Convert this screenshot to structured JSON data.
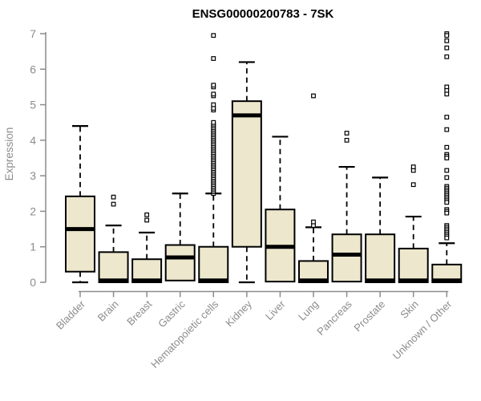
{
  "chart_data": {
    "type": "boxplot",
    "title": "ENSG00000200783 - 7SK",
    "ylabel": "Expression",
    "xlabel": "",
    "ylim": [
      0,
      7
    ],
    "yticks": [
      0,
      1,
      2,
      3,
      4,
      5,
      6,
      7
    ],
    "grid": "off",
    "legend": "none",
    "categories": [
      "Bladder",
      "Brain",
      "Breast",
      "Gastric",
      "Hematopoietic cells",
      "Kidney",
      "Liver",
      "Lung",
      "Pancreas",
      "Prostate",
      "Skin",
      "Unknown / Other"
    ],
    "colors": {
      "box_fill": "#ece7cd",
      "box_stroke": "#000000",
      "median": "#000000",
      "whisker": "#000000",
      "axis": "#8c8c8c",
      "tick_label": "#8c8c8c",
      "title": "#000000"
    },
    "series": [
      {
        "category": "Bladder",
        "whisker_low": 0,
        "q1": 0.3,
        "median": 1.5,
        "q3": 2.42,
        "whisker_high": 4.4,
        "outliers": []
      },
      {
        "category": "Brain",
        "whisker_low": 0,
        "q1": 0.0,
        "median": 0.05,
        "q3": 0.85,
        "whisker_high": 1.6,
        "outliers": [
          2.2,
          2.4
        ]
      },
      {
        "category": "Breast",
        "whisker_low": 0,
        "q1": 0.0,
        "median": 0.05,
        "q3": 0.65,
        "whisker_high": 1.4,
        "outliers": [
          1.75,
          1.9
        ]
      },
      {
        "category": "Gastric",
        "whisker_low": 0.05,
        "q1": 0.05,
        "median": 0.7,
        "q3": 1.05,
        "whisker_high": 2.5,
        "outliers": []
      },
      {
        "category": "Hematopoietic cells",
        "whisker_low": 0,
        "q1": 0.0,
        "median": 0.05,
        "q3": 1.0,
        "whisker_high": 2.5,
        "outliers": [
          2.5,
          2.55,
          2.6,
          2.65,
          2.7,
          2.75,
          2.8,
          2.85,
          2.9,
          2.95,
          3.0,
          3.05,
          3.1,
          3.15,
          3.2,
          3.25,
          3.3,
          3.35,
          3.4,
          3.45,
          3.5,
          3.55,
          3.6,
          3.65,
          3.7,
          3.75,
          3.8,
          3.85,
          3.9,
          3.95,
          4.0,
          4.05,
          4.1,
          4.15,
          4.2,
          4.25,
          4.3,
          4.35,
          4.4,
          4.45,
          4.5,
          4.85,
          4.9,
          5.0,
          5.25,
          5.3,
          5.5,
          5.55,
          6.3,
          6.95
        ]
      },
      {
        "category": "Kidney",
        "whisker_low": 0,
        "q1": 1.0,
        "median": 4.7,
        "q3": 5.1,
        "whisker_high": 6.2,
        "outliers": []
      },
      {
        "category": "Liver",
        "whisker_low": 0.02,
        "q1": 0.02,
        "median": 1.0,
        "q3": 2.05,
        "whisker_high": 4.1,
        "outliers": []
      },
      {
        "category": "Lung",
        "whisker_low": 0,
        "q1": 0.0,
        "median": 0.05,
        "q3": 0.6,
        "whisker_high": 1.55,
        "outliers": [
          1.6,
          1.7,
          5.25
        ]
      },
      {
        "category": "Pancreas",
        "whisker_low": 0.02,
        "q1": 0.02,
        "median": 0.78,
        "q3": 1.35,
        "whisker_high": 3.25,
        "outliers": [
          4.0,
          4.2
        ]
      },
      {
        "category": "Prostate",
        "whisker_low": 0,
        "q1": 0.0,
        "median": 0.05,
        "q3": 1.35,
        "whisker_high": 2.95,
        "outliers": []
      },
      {
        "category": "Skin",
        "whisker_low": 0,
        "q1": 0.0,
        "median": 0.05,
        "q3": 0.95,
        "whisker_high": 1.85,
        "outliers": [
          2.75,
          3.15,
          3.25
        ]
      },
      {
        "category": "Unknown / Other",
        "whisker_low": 0,
        "q1": 0.0,
        "median": 0.05,
        "q3": 0.5,
        "whisker_high": 1.1,
        "outliers": [
          7.0,
          6.95,
          6.8,
          6.6,
          6.35,
          5.5,
          5.4,
          5.3,
          4.65,
          4.3,
          3.8,
          3.6,
          3.55,
          3.5,
          3.15,
          2.95,
          2.7,
          2.65,
          2.6,
          2.55,
          2.5,
          2.45,
          2.4,
          2.35,
          2.3,
          2.25,
          2.05,
          2.0,
          1.95,
          1.6,
          1.55,
          1.5,
          1.45,
          1.4,
          1.35,
          1.3,
          1.25
        ]
      }
    ]
  }
}
